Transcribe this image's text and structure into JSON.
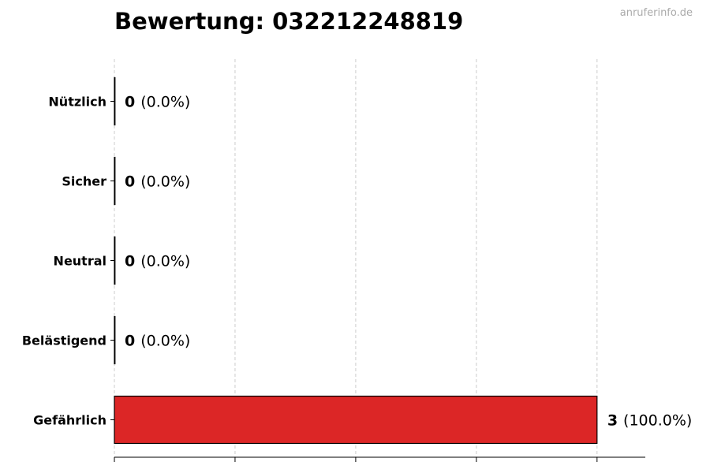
{
  "title": "Bewertung: 032212248819",
  "watermark": "anruferinfo.de",
  "chart_data": {
    "type": "bar",
    "orientation": "horizontal",
    "title": "Bewertung: 032212248819",
    "categories": [
      "Nützlich",
      "Sicher",
      "Neutral",
      "Belästigend",
      "Gefährlich"
    ],
    "values": [
      0,
      0,
      0,
      0,
      3
    ],
    "percent_labels": [
      "(0.0%)",
      "(0.0%)",
      "(0.0%)",
      "(0.0%)",
      "(100.0%)"
    ],
    "colors": [
      "#2ca02c",
      "#1f77b4",
      "#999999",
      "#ff7f0e",
      "#dc2626"
    ],
    "xlim": [
      0,
      3.3
    ],
    "xticks": [
      0,
      0.75,
      1.5,
      2.25,
      3
    ],
    "xtick_labels_shown": false,
    "grid": "vertical dashed",
    "xlabel": "",
    "ylabel": ""
  }
}
